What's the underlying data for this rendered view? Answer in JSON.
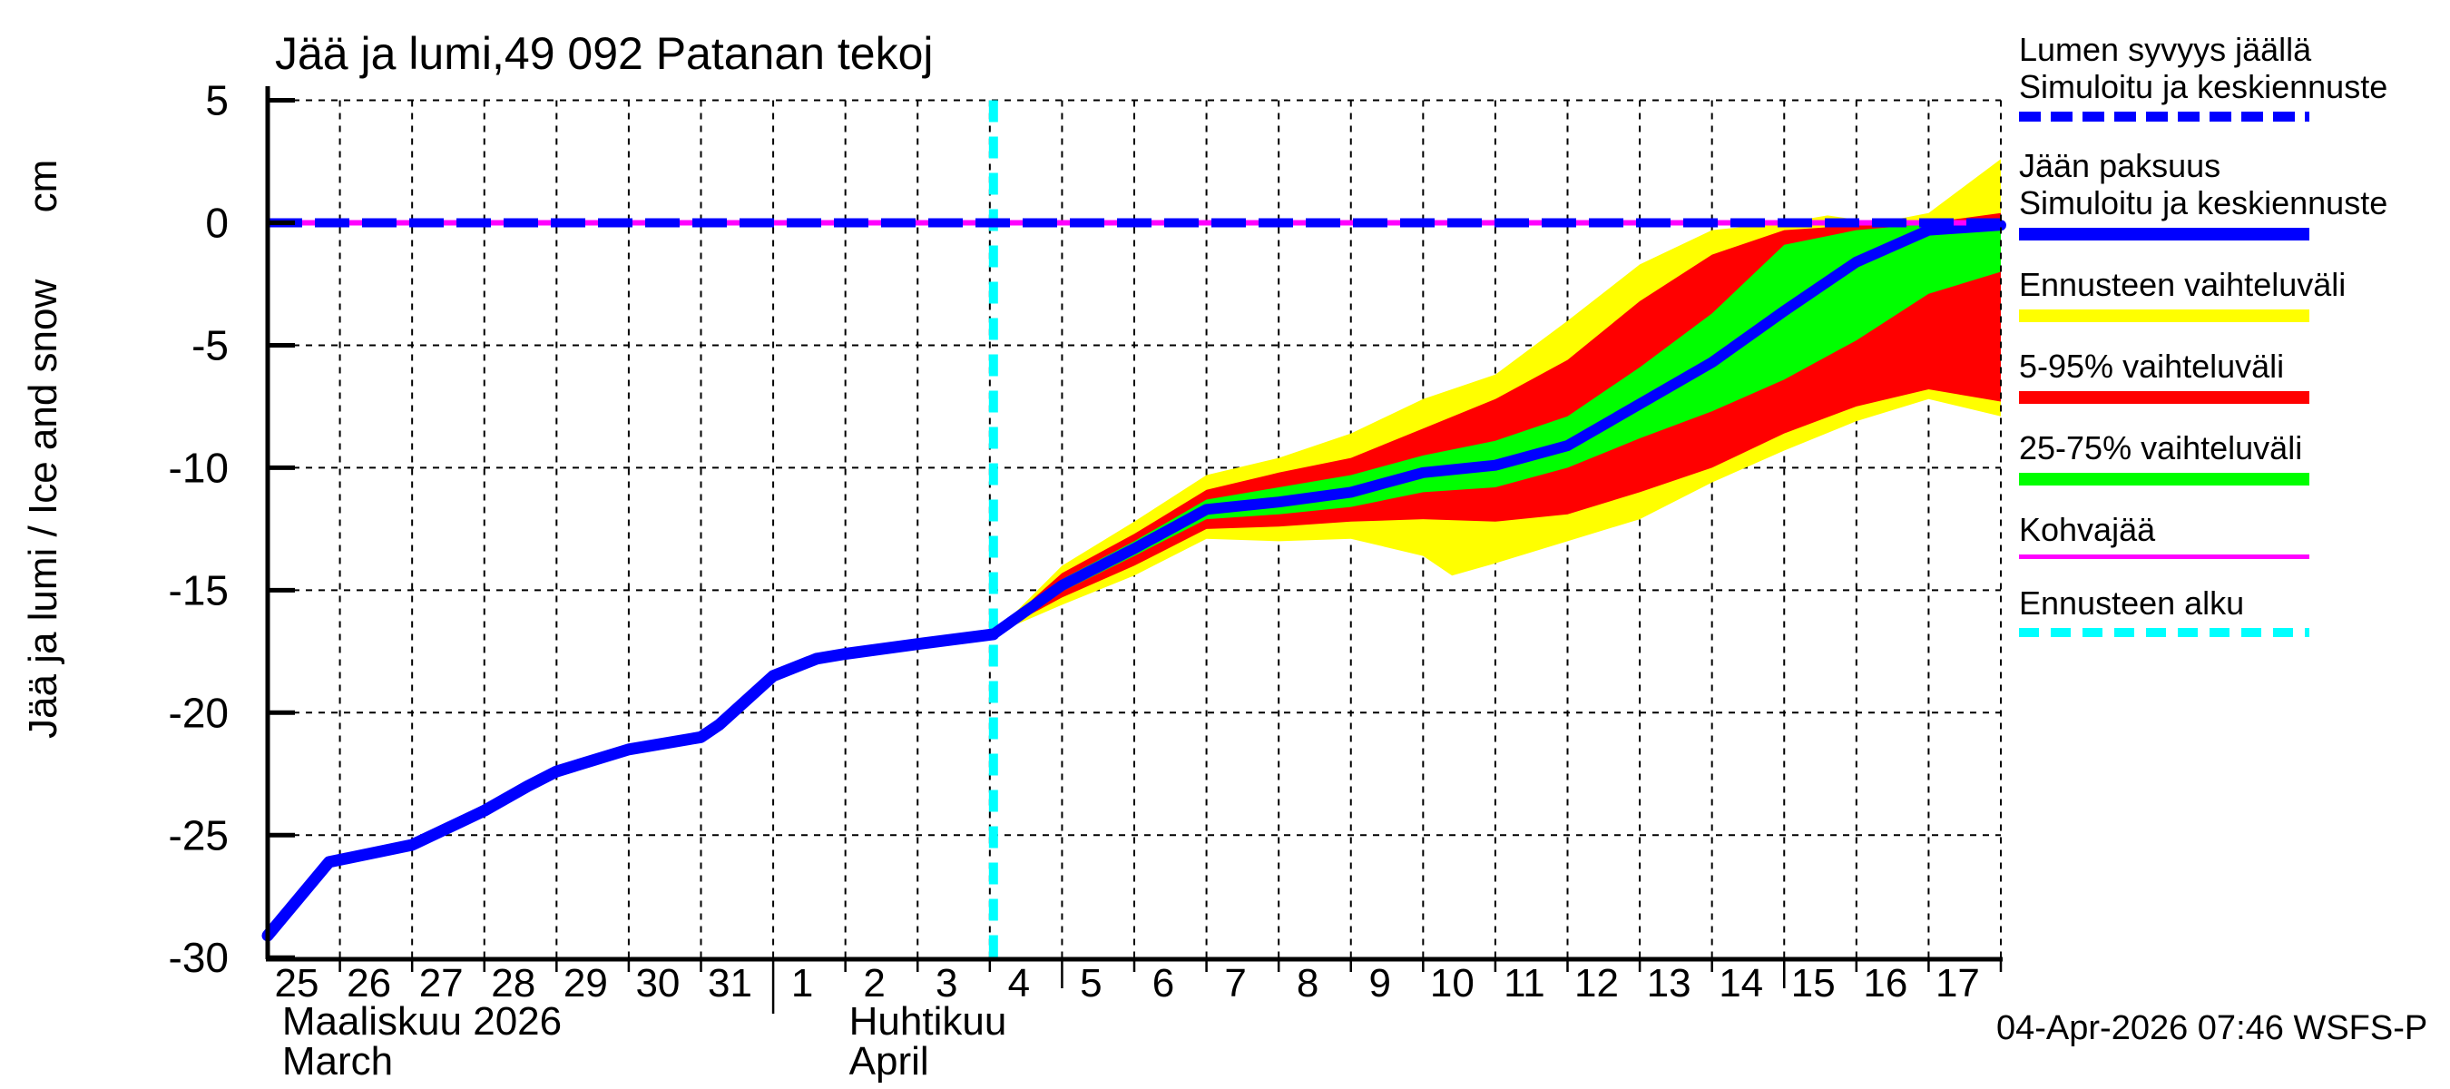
{
  "header": {
    "title": "Jää ja lumi,49 092 Patanan tekoj"
  },
  "timestamp": "04-Apr-2026 07:46 WSFS-P",
  "colors": {
    "simulated_line": "#0000ff",
    "snow_line": "#0000ff",
    "full_range_band": "#ffff00",
    "p5_95_band": "#ff0000",
    "p25_75_band": "#00ff00",
    "kohvajaa_line": "#ff00ff",
    "forecast_start_line": "#00ffff",
    "grid": "#000000",
    "axis": "#000000"
  },
  "legend": [
    {
      "line1": "Lumen syvyys jäällä",
      "line2": "Simuloitu ja keskiennuste",
      "sample": {
        "color": "#0000ff",
        "style": "dashed",
        "thickness": 11,
        "dash": 24,
        "gap": 11
      }
    },
    {
      "line1": "Jään paksuus",
      "line2": "Simuloitu ja keskiennuste",
      "sample": {
        "color": "#0000ff",
        "style": "solid",
        "thickness": 14
      }
    },
    {
      "line1": "Ennusteen vaihteluväli",
      "sample": {
        "color": "#ffff00",
        "style": "solid",
        "thickness": 14
      }
    },
    {
      "line1": "5-95% vaihteluväli",
      "sample": {
        "color": "#ff0000",
        "style": "solid",
        "thickness": 14
      }
    },
    {
      "line1": "25-75% vaihteluväli",
      "sample": {
        "color": "#00ff00",
        "style": "solid",
        "thickness": 14
      }
    },
    {
      "line1": "Kohvajää",
      "sample": {
        "color": "#ff00ff",
        "style": "solid",
        "thickness": 5
      }
    },
    {
      "line1": "Ennusteen alku",
      "sample": {
        "color": "#00ffff",
        "style": "dashed",
        "thickness": 10,
        "dash": 22,
        "gap": 13
      }
    }
  ],
  "chart_data": {
    "type": "line",
    "title": "Jää ja lumi,49 092 Patanan tekoj",
    "ylabel": "Jää ja lumi / Ice and snow      cm",
    "y_axis": {
      "unit": "cm",
      "min": -30,
      "max": 5,
      "ticks": [
        5,
        0,
        -5,
        -10,
        -15,
        -20,
        -25,
        -30
      ]
    },
    "x_axis": {
      "total_days": 24,
      "months": [
        {
          "label": "Maaliskuu 2026",
          "label_en": "March",
          "label_day": 0.2,
          "days": [
            25,
            26,
            27,
            28,
            29,
            30,
            31
          ]
        },
        {
          "label": "Huhtikuu",
          "label_en": "April",
          "label_day": 8.05,
          "days": [
            1,
            2,
            3,
            4,
            5,
            6,
            7,
            8,
            9,
            10,
            11,
            12,
            13,
            14,
            15,
            16,
            17
          ]
        }
      ],
      "long_tick_days": [
        11,
        21
      ],
      "month_boundary_days": [
        7
      ]
    },
    "forecast_start_day": 10.05,
    "series": {
      "snow_depth_on_ice_level": 0,
      "kohvajaa_level": 0,
      "ice_thickness_simulated": [
        [
          0,
          -29.1
        ],
        [
          0.85,
          -26.1
        ],
        [
          2,
          -25.4
        ],
        [
          3,
          -24.0
        ],
        [
          3.6,
          -23.0
        ],
        [
          4,
          -22.4
        ],
        [
          5,
          -21.5
        ],
        [
          6,
          -21.0
        ],
        [
          6.25,
          -20.5
        ],
        [
          7,
          -18.5
        ],
        [
          7.6,
          -17.8
        ],
        [
          8,
          -17.6
        ],
        [
          9,
          -17.2
        ],
        [
          10.05,
          -16.8
        ]
      ],
      "ice_thickness_forecast_median": [
        [
          10.05,
          -16.8
        ],
        [
          11,
          -14.8
        ],
        [
          12,
          -13.3
        ],
        [
          13,
          -11.7
        ],
        [
          14,
          -11.4
        ],
        [
          15,
          -11.0
        ],
        [
          16,
          -10.2
        ],
        [
          17,
          -9.9
        ],
        [
          18,
          -9.1
        ],
        [
          19,
          -7.4
        ],
        [
          20,
          -5.7
        ],
        [
          21,
          -3.6
        ],
        [
          22,
          -1.6
        ],
        [
          23,
          -0.3
        ],
        [
          24,
          -0.1
        ]
      ]
    },
    "bands": {
      "full_range": {
        "top": [
          [
            10.05,
            -16.8
          ],
          [
            11,
            -14.0
          ],
          [
            12,
            -12.2
          ],
          [
            13,
            -10.3
          ],
          [
            14,
            -9.6
          ],
          [
            15,
            -8.6
          ],
          [
            16,
            -7.2
          ],
          [
            17,
            -6.2
          ],
          [
            18,
            -4.0
          ],
          [
            19,
            -1.7
          ],
          [
            20,
            -0.3
          ],
          [
            21,
            0.0
          ],
          [
            21.6,
            0.3
          ],
          [
            22.3,
            0.0
          ],
          [
            23,
            0.4
          ],
          [
            24,
            2.6
          ]
        ],
        "bottom": [
          [
            10.05,
            -16.8
          ],
          [
            11,
            -15.6
          ],
          [
            12,
            -14.4
          ],
          [
            13,
            -12.9
          ],
          [
            14,
            -13.0
          ],
          [
            15,
            -12.9
          ],
          [
            16,
            -13.6
          ],
          [
            16.4,
            -14.4
          ],
          [
            17,
            -13.9
          ],
          [
            18,
            -13.0
          ],
          [
            19,
            -12.1
          ],
          [
            20,
            -10.6
          ],
          [
            21,
            -9.3
          ],
          [
            22,
            -8.1
          ],
          [
            23,
            -7.2
          ],
          [
            24,
            -7.9
          ]
        ]
      },
      "p5_95": {
        "top": [
          [
            10.05,
            -16.8
          ],
          [
            11,
            -14.3
          ],
          [
            12,
            -12.7
          ],
          [
            13,
            -10.9
          ],
          [
            14,
            -10.2
          ],
          [
            15,
            -9.6
          ],
          [
            16,
            -8.4
          ],
          [
            17,
            -7.2
          ],
          [
            18,
            -5.6
          ],
          [
            19,
            -3.2
          ],
          [
            20,
            -1.3
          ],
          [
            21,
            -0.3
          ],
          [
            22,
            -0.1
          ],
          [
            23,
            0.0
          ],
          [
            24,
            0.4
          ]
        ],
        "bottom": [
          [
            10.05,
            -16.8
          ],
          [
            11,
            -15.3
          ],
          [
            12,
            -14.0
          ],
          [
            13,
            -12.5
          ],
          [
            14,
            -12.4
          ],
          [
            15,
            -12.2
          ],
          [
            16,
            -12.1
          ],
          [
            17,
            -12.2
          ],
          [
            18,
            -11.9
          ],
          [
            19,
            -11.0
          ],
          [
            20,
            -10.0
          ],
          [
            21,
            -8.6
          ],
          [
            22,
            -7.5
          ],
          [
            23,
            -6.8
          ],
          [
            24,
            -7.3
          ]
        ]
      },
      "p25_75": {
        "top": [
          [
            10.05,
            -16.8
          ],
          [
            11,
            -14.55
          ],
          [
            12,
            -13.0
          ],
          [
            13,
            -11.3
          ],
          [
            14,
            -10.8
          ],
          [
            15,
            -10.3
          ],
          [
            16,
            -9.5
          ],
          [
            17,
            -8.9
          ],
          [
            18,
            -7.9
          ],
          [
            19,
            -5.9
          ],
          [
            20,
            -3.7
          ],
          [
            21,
            -0.9
          ],
          [
            22,
            -0.3
          ],
          [
            23,
            -0.05
          ],
          [
            24,
            0.0
          ]
        ],
        "bottom": [
          [
            10.05,
            -16.8
          ],
          [
            11,
            -15.05
          ],
          [
            12,
            -13.6
          ],
          [
            13,
            -12.1
          ],
          [
            14,
            -11.9
          ],
          [
            15,
            -11.6
          ],
          [
            16,
            -11.0
          ],
          [
            17,
            -10.8
          ],
          [
            18,
            -10.0
          ],
          [
            19,
            -8.8
          ],
          [
            20,
            -7.7
          ],
          [
            21,
            -6.4
          ],
          [
            22,
            -4.8
          ],
          [
            23,
            -2.9
          ],
          [
            24,
            -2.0
          ]
        ]
      }
    }
  }
}
